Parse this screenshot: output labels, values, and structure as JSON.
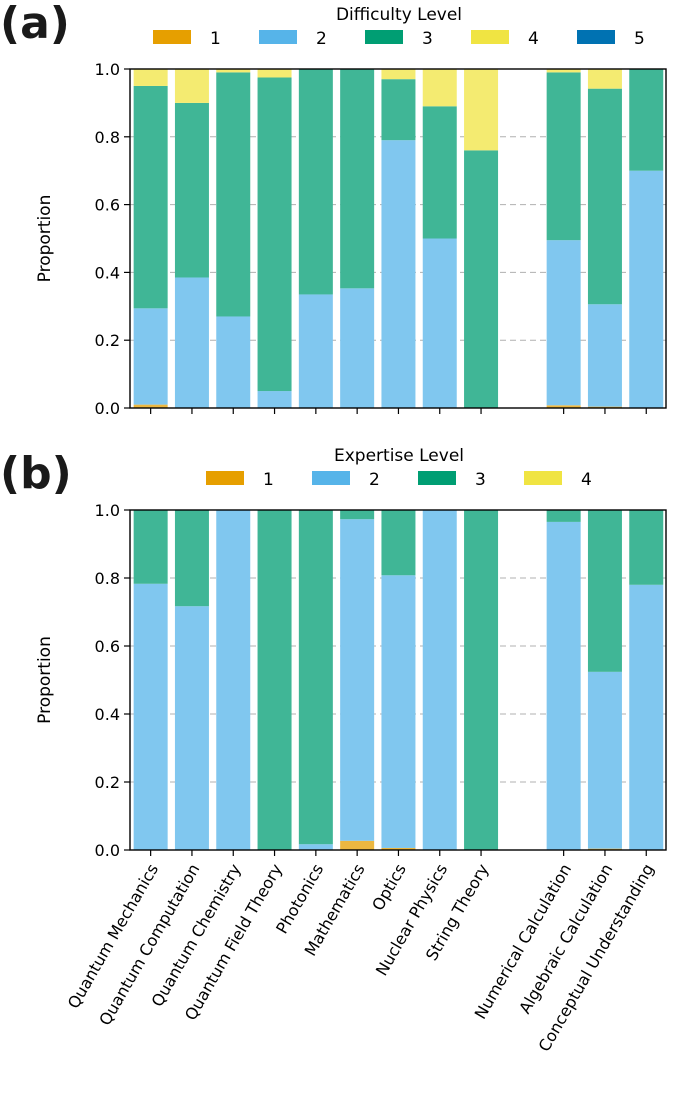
{
  "panels": {
    "a_letter": "(a)",
    "b_letter": "(b)"
  },
  "colors": {
    "1": "#E69F00",
    "2": "#56B4E9",
    "3": "#009E73",
    "4": "#F0E442",
    "5": "#0072B2"
  },
  "chart_data": [
    {
      "type": "bar",
      "stacked": true,
      "title": "Difficulty Level",
      "ylabel": "Proportion",
      "ylim": [
        0,
        1
      ],
      "yticks": [
        "0.0",
        "0.2",
        "0.4",
        "0.6",
        "0.8",
        "1.0"
      ],
      "grid": true,
      "legend_placement": "top",
      "legend": [
        "1",
        "2",
        "3",
        "4",
        "5"
      ],
      "categories": [
        "Quantum Mechanics",
        "Quantum Computation",
        "Quantum Chemistry",
        "Quantum Field Theory",
        "Photonics",
        "Mathematics",
        "Optics",
        "Nuclear Physics",
        "String Theory",
        "",
        "Numerical Calculation",
        "Algebraic Calculation",
        "Conceptual Understanding"
      ],
      "series": [
        {
          "name": "1",
          "values": [
            0.01,
            0.0,
            0.0,
            0.0,
            0.0,
            0.0,
            0.0,
            0.0,
            0.0,
            0,
            0.008,
            0.004,
            0.0
          ]
        },
        {
          "name": "2",
          "values": [
            0.284,
            0.385,
            0.27,
            0.05,
            0.335,
            0.353,
            0.79,
            0.5,
            0.0,
            0,
            0.487,
            0.302,
            0.7
          ]
        },
        {
          "name": "3",
          "values": [
            0.656,
            0.515,
            0.72,
            0.925,
            0.665,
            0.647,
            0.18,
            0.39,
            0.76,
            0,
            0.495,
            0.636,
            0.3
          ]
        },
        {
          "name": "4",
          "values": [
            0.05,
            0.1,
            0.01,
            0.025,
            0.0,
            0.0,
            0.03,
            0.11,
            0.24,
            0,
            0.01,
            0.058,
            0.0
          ]
        },
        {
          "name": "5",
          "values": [
            0,
            0,
            0,
            0,
            0,
            0,
            0,
            0,
            0,
            0,
            0,
            0,
            0
          ]
        }
      ]
    },
    {
      "type": "bar",
      "stacked": true,
      "title": "Expertise Level",
      "ylabel": "Proportion",
      "ylim": [
        0,
        1
      ],
      "yticks": [
        "0.0",
        "0.2",
        "0.4",
        "0.6",
        "0.8",
        "1.0"
      ],
      "grid": true,
      "legend_placement": "top",
      "legend": [
        "1",
        "2",
        "3",
        "4"
      ],
      "categories": [
        "Quantum Mechanics",
        "Quantum Computation",
        "Quantum Chemistry",
        "Quantum Field Theory",
        "Photonics",
        "Mathematics",
        "Optics",
        "Nuclear Physics",
        "String Theory",
        "",
        "Numerical Calculation",
        "Algebraic Calculation",
        "Conceptual Understanding"
      ],
      "series": [
        {
          "name": "1",
          "values": [
            0.0,
            0.0,
            0.0,
            0.0,
            0.0,
            0.027,
            0.006,
            0.0,
            0.0,
            0,
            0.0,
            0.004,
            0.0
          ]
        },
        {
          "name": "2",
          "values": [
            0.783,
            0.717,
            1.0,
            0.0,
            0.017,
            0.946,
            0.802,
            1.0,
            0.0,
            0,
            0.965,
            0.52,
            0.78
          ]
        },
        {
          "name": "3",
          "values": [
            0.217,
            0.283,
            0.0,
            1.0,
            0.983,
            0.027,
            0.192,
            0.0,
            1.0,
            0,
            0.035,
            0.476,
            0.22
          ]
        },
        {
          "name": "4",
          "values": [
            0,
            0,
            0,
            0,
            0,
            0,
            0,
            0,
            0,
            0,
            0,
            0,
            0
          ]
        }
      ]
    }
  ]
}
